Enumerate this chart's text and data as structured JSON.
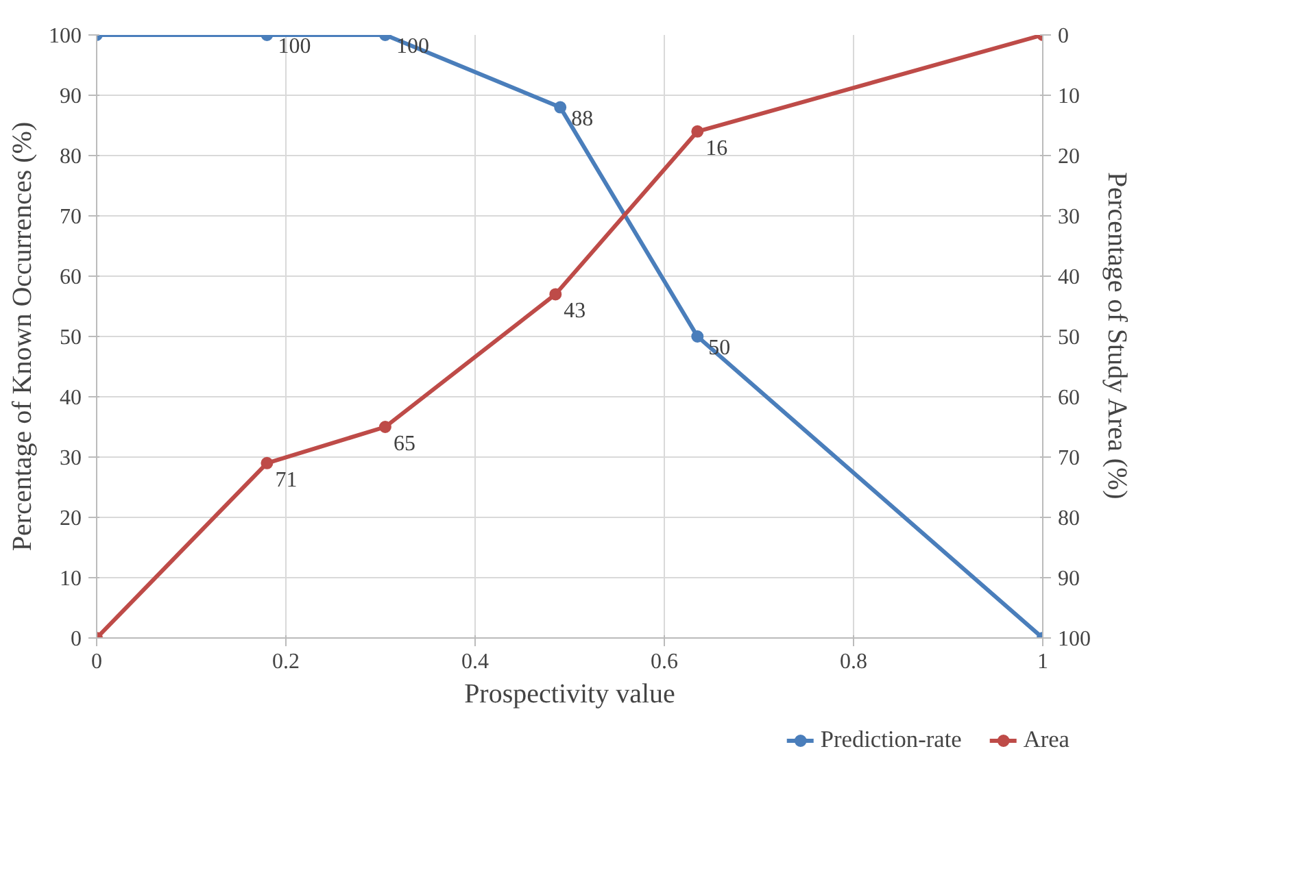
{
  "chart_data": {
    "type": "line",
    "xlabel": "Prospectivity value",
    "ylabel": "Percentage of Known Occurrences (%)",
    "y2label": "Percentage of Study Area (%)",
    "xlim": [
      0,
      1
    ],
    "xticks": [
      0,
      0.2,
      0.4,
      0.6,
      0.8,
      1
    ],
    "ylim": [
      0,
      100
    ],
    "yticks": [
      0,
      10,
      20,
      30,
      40,
      50,
      60,
      70,
      80,
      90,
      100
    ],
    "y2lim": [
      100,
      0
    ],
    "y2ticks": [
      0,
      10,
      20,
      30,
      40,
      50,
      60,
      70,
      80,
      90,
      100
    ],
    "series": [
      {
        "name": "Prediction-rate",
        "color": "#4a7ebb",
        "x": [
          0,
          0.18,
          0.305,
          0.49,
          0.635,
          1
        ],
        "values": [
          100,
          100,
          100,
          88,
          50,
          0
        ],
        "value_labels": [
          null,
          "100",
          "100",
          "88",
          "50",
          null
        ]
      },
      {
        "name": "Area",
        "color": "#be4b48",
        "axis": "y2",
        "x": [
          0,
          0.18,
          0.305,
          0.485,
          0.635,
          1
        ],
        "values": [
          100,
          71,
          65,
          43,
          16,
          0
        ],
        "value_labels": [
          null,
          "71",
          "65",
          "43",
          "16",
          null
        ]
      }
    ],
    "grid": true,
    "legend": "bottom right",
    "marker": "circle",
    "line_style": "solid"
  }
}
